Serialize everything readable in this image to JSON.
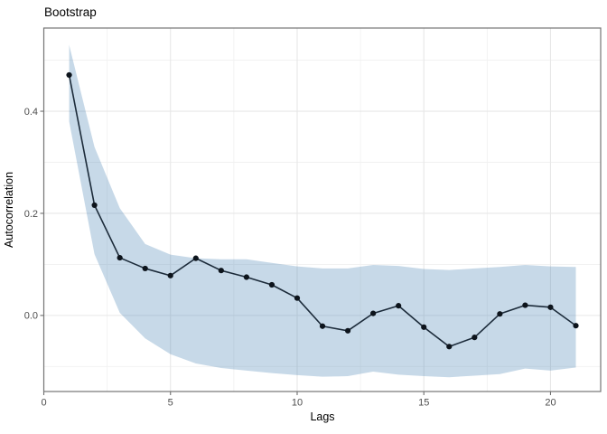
{
  "chart_data": {
    "type": "line",
    "title": "Bootstrap",
    "xlabel": "Lags",
    "ylabel": "Autocorrelation",
    "x": [
      1,
      2,
      3,
      4,
      5,
      6,
      7,
      8,
      9,
      10,
      11,
      12,
      13,
      14,
      15,
      16,
      17,
      18,
      19,
      20,
      21
    ],
    "series": [
      {
        "name": "autocorrelation",
        "values": [
          0.471,
          0.216,
          0.113,
          0.092,
          0.078,
          0.112,
          0.088,
          0.075,
          0.06,
          0.034,
          -0.021,
          -0.03,
          0.004,
          0.019,
          -0.023,
          -0.061,
          -0.043,
          0.003,
          0.02,
          0.016,
          -0.02
        ]
      }
    ],
    "ribbon": {
      "name": "bootstrap-confidence-band",
      "upper": [
        0.53,
        0.33,
        0.21,
        0.14,
        0.119,
        0.112,
        0.11,
        0.11,
        0.103,
        0.096,
        0.092,
        0.092,
        0.099,
        0.097,
        0.091,
        0.089,
        0.092,
        0.095,
        0.099,
        0.096,
        0.095
      ],
      "lower": [
        0.38,
        0.12,
        0.005,
        -0.045,
        -0.076,
        -0.094,
        -0.103,
        -0.108,
        -0.113,
        -0.117,
        -0.12,
        -0.119,
        -0.11,
        -0.116,
        -0.119,
        -0.121,
        -0.118,
        -0.115,
        -0.104,
        -0.108,
        -0.102
      ]
    },
    "x_ticks": {
      "major": [
        0,
        5,
        10,
        15,
        20
      ],
      "minor": [
        2.5,
        7.5,
        12.5,
        17.5
      ],
      "labels": [
        "0",
        "5",
        "10",
        "15",
        "20"
      ]
    },
    "y_ticks": {
      "major": [
        0.0,
        0.2,
        0.4
      ],
      "minor": [
        -0.1,
        0.1,
        0.3,
        0.5
      ],
      "labels": [
        "0.0",
        "0.2",
        "0.4"
      ]
    },
    "xlim": [
      0,
      21.98
    ],
    "ylim": [
      -0.149,
      0.563
    ],
    "grid": true,
    "legend": false
  },
  "colors": {
    "background": "#ffffff",
    "ribbon_fill": "#4682B4",
    "ribbon_alpha": 0.3,
    "line": "#1c2b3a",
    "point": "#0d141c",
    "grid_major": "#e7e7e7",
    "grid_minor": "#f1f1f1",
    "panel_border": "#757575",
    "tick": "#6e6e6e",
    "tick_label": "#4d4d4d",
    "text": "#000000"
  }
}
